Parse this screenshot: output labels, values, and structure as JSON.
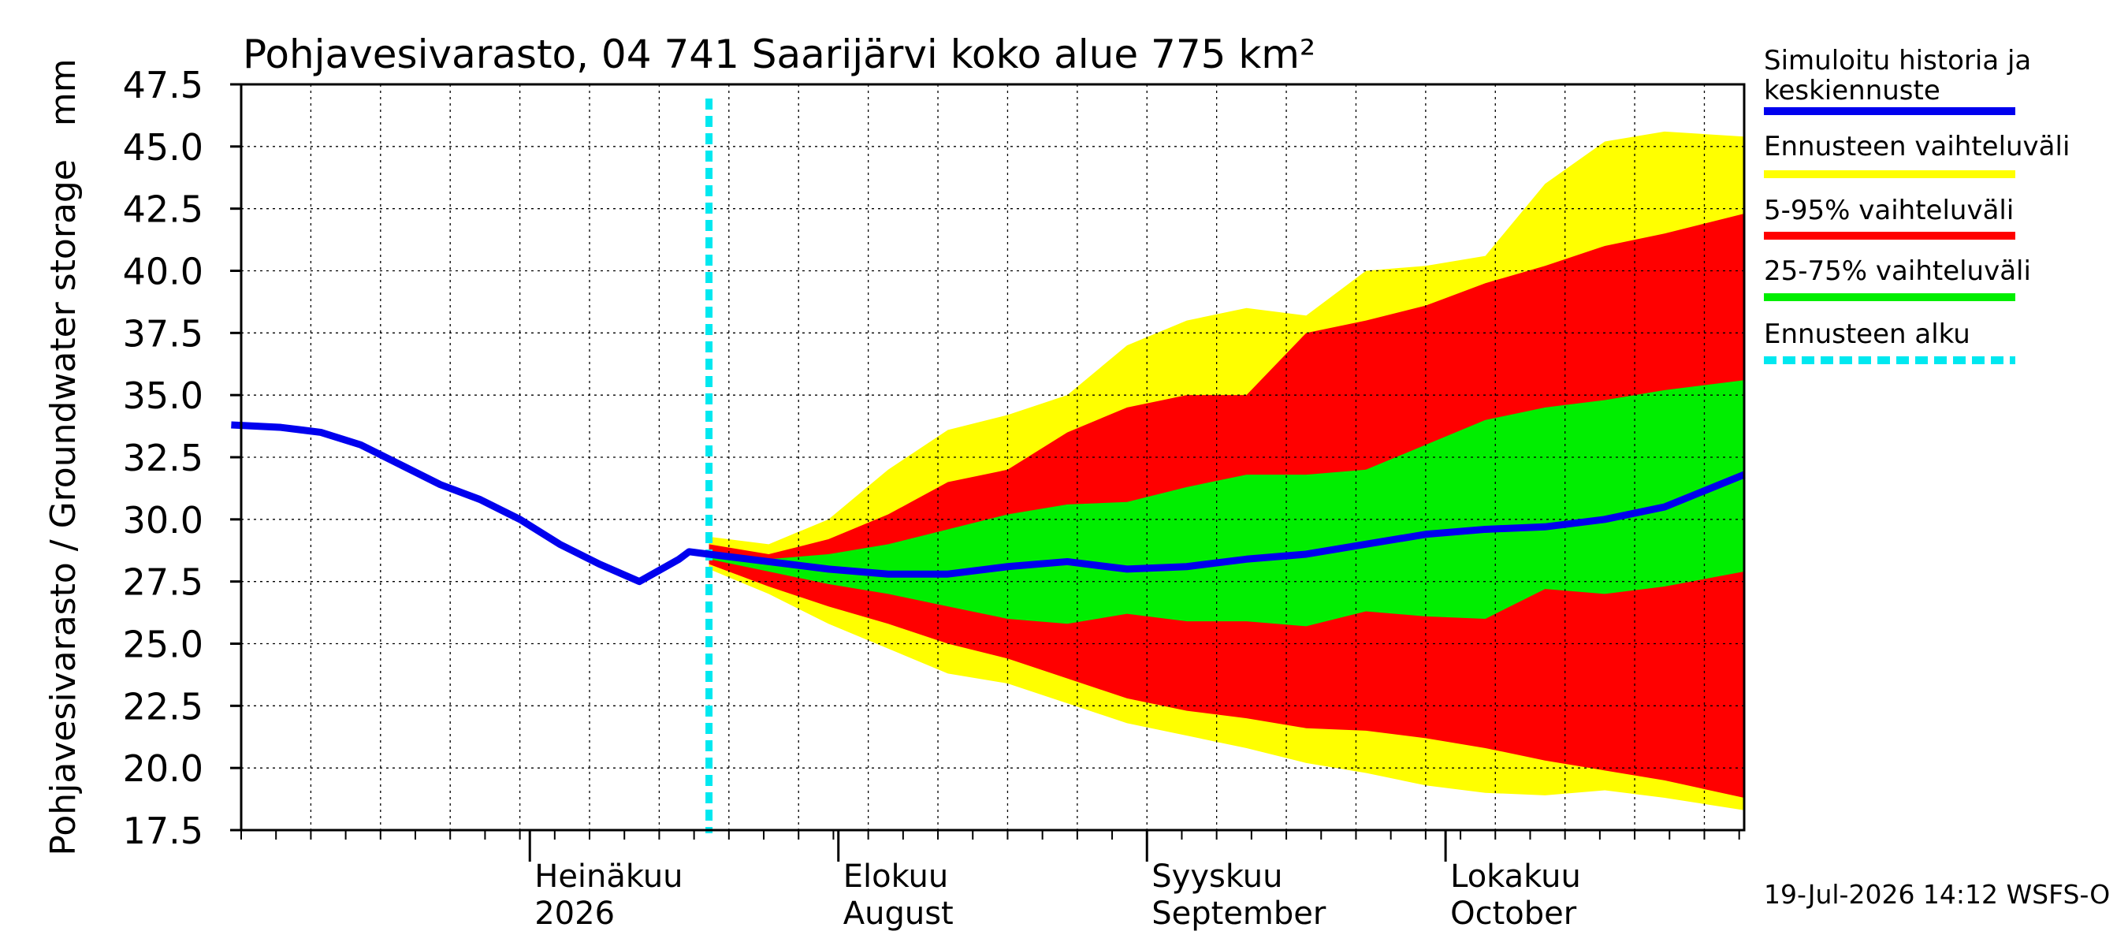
{
  "chart_data": {
    "type": "area",
    "title": "Pohjavesivarasto, 04 741 Saarijärvi koko alue 775 km²",
    "ylabel": "Pohjavesivarasto / Groundwater storage   mm",
    "ylim": [
      17.5,
      47.5
    ],
    "yticks": [
      "17.5",
      "20.0",
      "22.5",
      "25.0",
      "27.5",
      "30.0",
      "32.5",
      "35.0",
      "37.5",
      "40.0",
      "42.5",
      "45.0",
      "47.5"
    ],
    "grid": true,
    "legend_position": "right",
    "x_range": [
      "2026-06-02",
      "2026-10-31"
    ],
    "forecast_start": "2026-07-19",
    "months": [
      {
        "line1": "Heinäkuu",
        "line2": "2026",
        "date": "2026-07-01"
      },
      {
        "line1": "Elokuu",
        "line2": "August",
        "date": "2026-08-01"
      },
      {
        "line1": "Syyskuu",
        "line2": "September",
        "date": "2026-09-01"
      },
      {
        "line1": "Lokakuu",
        "line2": "October",
        "date": "2026-10-01"
      }
    ],
    "history": {
      "x": [
        "2026-06-01",
        "2026-06-06",
        "2026-06-10",
        "2026-06-14",
        "2026-06-18",
        "2026-06-22",
        "2026-06-26",
        "2026-06-30",
        "2026-07-04",
        "2026-07-08",
        "2026-07-12",
        "2026-07-16",
        "2026-07-17",
        "2026-07-19"
      ],
      "y": [
        33.8,
        33.7,
        33.5,
        33.0,
        32.2,
        31.4,
        30.8,
        30.0,
        29.0,
        28.2,
        27.5,
        28.4,
        28.7,
        28.6
      ]
    },
    "forecast": {
      "x": [
        "2026-07-19",
        "2026-07-25",
        "2026-07-31",
        "2026-08-06",
        "2026-08-12",
        "2026-08-18",
        "2026-08-24",
        "2026-08-30",
        "2026-09-05",
        "2026-09-11",
        "2026-09-17",
        "2026-09-23",
        "2026-09-29",
        "2026-10-05",
        "2026-10-11",
        "2026-10-17",
        "2026-10-23",
        "2026-10-31"
      ],
      "series": [
        {
          "name": "Ennusteen vaihteluväli",
          "role": "max",
          "values": [
            29.3,
            29.0,
            30.0,
            32.0,
            33.6,
            34.2,
            35.0,
            37.0,
            38.0,
            38.5,
            38.2,
            40.0,
            40.2,
            40.6,
            43.5,
            45.2,
            45.6,
            45.4
          ]
        },
        {
          "name": "5-95% vaihteluväli",
          "role": "p95",
          "values": [
            29.0,
            28.6,
            29.2,
            30.2,
            31.5,
            32.0,
            33.5,
            34.5,
            35.0,
            35.0,
            37.5,
            38.0,
            38.6,
            39.5,
            40.2,
            41.0,
            41.5,
            42.3
          ]
        },
        {
          "name": "25-75% vaihteluväli",
          "role": "p75",
          "values": [
            28.7,
            28.4,
            28.6,
            29.0,
            29.6,
            30.2,
            30.6,
            30.7,
            31.3,
            31.8,
            31.8,
            32.0,
            33.0,
            34.0,
            34.5,
            34.8,
            35.2,
            35.6
          ]
        },
        {
          "name": "Simuloitu historia ja keskiennuste",
          "role": "median",
          "values": [
            28.6,
            28.3,
            28.0,
            27.8,
            27.8,
            28.1,
            28.3,
            28.0,
            28.1,
            28.4,
            28.6,
            29.0,
            29.4,
            29.6,
            29.7,
            30.0,
            30.5,
            31.8
          ]
        },
        {
          "name": "25-75% vaihteluväli",
          "role": "p25",
          "values": [
            28.4,
            27.9,
            27.4,
            27.0,
            26.5,
            26.0,
            25.8,
            26.2,
            25.9,
            25.9,
            25.7,
            26.3,
            26.1,
            26.0,
            27.2,
            27.0,
            27.3,
            27.9
          ]
        },
        {
          "name": "5-95% vaihteluväli",
          "role": "p5",
          "values": [
            28.2,
            27.3,
            26.5,
            25.8,
            25.0,
            24.4,
            23.6,
            22.8,
            22.3,
            22.0,
            21.6,
            21.5,
            21.2,
            20.8,
            20.3,
            19.9,
            19.5,
            18.8
          ]
        },
        {
          "name": "Ennusteen vaihteluväli",
          "role": "min",
          "values": [
            28.0,
            27.0,
            25.8,
            24.8,
            23.8,
            23.4,
            22.6,
            21.8,
            21.3,
            20.8,
            20.2,
            19.8,
            19.3,
            19.0,
            18.9,
            19.1,
            18.8,
            18.3
          ]
        }
      ]
    },
    "colors": {
      "yellow": "#ffff00",
      "red": "#ff0000",
      "green": "#00ee00",
      "median": "#0000ee",
      "forecast_start": "#00e8f0",
      "grid": "#000000"
    }
  },
  "legend": [
    {
      "label": "Simuloitu historia ja keskiennuste",
      "color": "#0000ee"
    },
    {
      "label": "Ennusteen vaihteluväli",
      "color": "#ffff00"
    },
    {
      "label": "5-95% vaihteluväli",
      "color": "#ff0000"
    },
    {
      "label": "25-75% vaihteluväli",
      "color": "#00ee00"
    },
    {
      "label": "Ennusteen alku",
      "color": "#00e8f0"
    }
  ],
  "footer": "19-Jul-2026 14:12 WSFS-O"
}
